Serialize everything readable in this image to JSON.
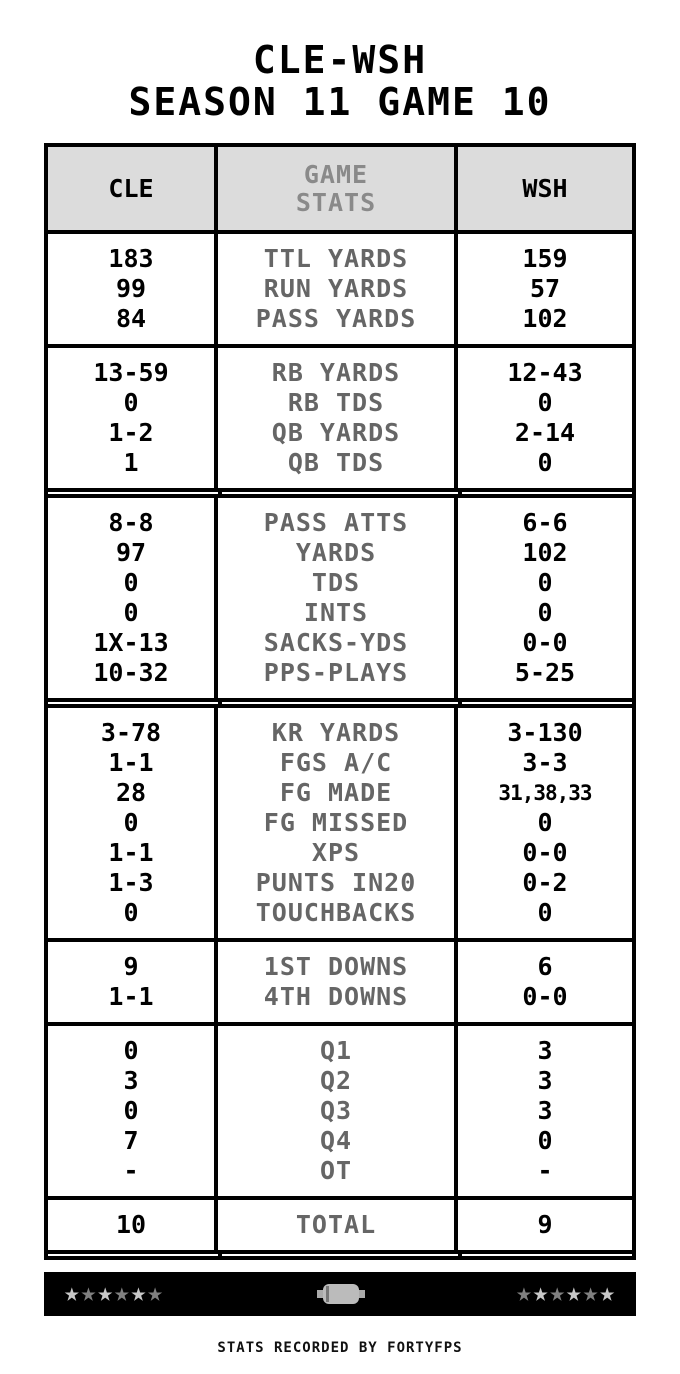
{
  "title": {
    "line1": "CLE-WSH",
    "line2": "SEASON 11 GAME 10"
  },
  "header": {
    "left": "CLE",
    "center": "GAME\nSTATS",
    "right": "WSH"
  },
  "sections": [
    {
      "labels": [
        "TTL YARDS",
        "RUN YARDS",
        "PASS YARDS"
      ],
      "cle": [
        "183",
        "99",
        "84"
      ],
      "wsh": [
        "159",
        "57",
        "102"
      ],
      "double": false
    },
    {
      "labels": [
        "RB YARDS",
        "RB TDS",
        "QB YARDS",
        "QB TDS"
      ],
      "cle": [
        "13-59",
        "0",
        "1-2",
        "1"
      ],
      "wsh": [
        "12-43",
        "0",
        "2-14",
        "0"
      ],
      "double": true
    },
    {
      "labels": [
        "PASS ATTS",
        "YARDS",
        "TDS",
        "INTS",
        "SACKS-YDS",
        "PPS-PLAYS"
      ],
      "cle": [
        "8-8",
        "97",
        "0",
        "0",
        "1X-13",
        "10-32"
      ],
      "wsh": [
        "6-6",
        "102",
        "0",
        "0",
        "0-0",
        "5-25"
      ],
      "double": true
    },
    {
      "labels": [
        "KR YARDS",
        "FGS A/C",
        "FG MADE",
        "FG MISSED",
        "XPS",
        "PUNTS IN20",
        "TOUCHBACKS"
      ],
      "cle": [
        "3-78",
        "1-1",
        "28",
        "0",
        "1-1",
        "1-3",
        "0"
      ],
      "wsh": [
        "3-130",
        "3-3",
        "31,38,33",
        "0",
        "0-0",
        "0-2",
        "0"
      ],
      "double": false
    },
    {
      "labels": [
        "1ST DOWNS",
        "4TH DOWNS"
      ],
      "cle": [
        "9",
        "1-1"
      ],
      "wsh": [
        "6",
        "0-0"
      ],
      "double": false
    },
    {
      "labels": [
        "Q1",
        "Q2",
        "Q3",
        "Q4",
        "OT"
      ],
      "cle": [
        "0",
        "3",
        "0",
        "7",
        "-"
      ],
      "wsh": [
        "3",
        "3",
        "3",
        "0",
        "-"
      ],
      "double": false
    },
    {
      "labels": [
        "TOTAL"
      ],
      "cle": [
        "10"
      ],
      "wsh": [
        "9"
      ],
      "double": true
    }
  ],
  "bottom_bar": {
    "left_stars": [
      "#c8c8c8",
      "#808080",
      "#c8c8c8",
      "#808080",
      "#c8c8c8",
      "#808080"
    ],
    "right_stars": [
      "#808080",
      "#c8c8c8",
      "#808080",
      "#c8c8c8",
      "#808080",
      "#c8c8c8"
    ],
    "center_icon": "football-icon"
  },
  "footer": "STATS RECORDED BY FORTYFPS"
}
